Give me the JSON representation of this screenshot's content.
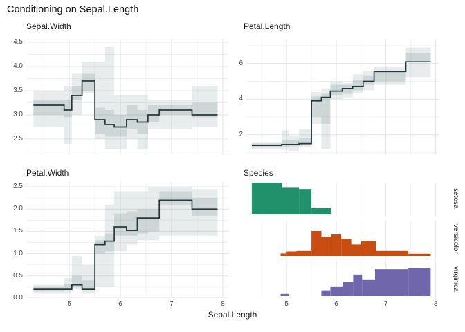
{
  "title": "Conditioning on Sepal.Length",
  "xlabel": "Sepal.Length",
  "colors": {
    "line": "#263a3e",
    "band": "#8d9e9e",
    "grid_major": "#e4e7e7",
    "grid_minor": "#f2f4f4",
    "tick_text": "#4d4d4d",
    "text": "#1a1a1a",
    "setosa": "#21916b",
    "versicolor": "#c84d10",
    "virginica": "#6f66ab"
  },
  "chart_data": [
    {
      "type": "line",
      "title": "Sepal.Width",
      "xlim": [
        4.16,
        8.11
      ],
      "ylim": [
        2.186,
        4.557
      ],
      "xticks": [
        5,
        6,
        7,
        8
      ],
      "xminor": [
        4.5,
        5.5,
        6.5,
        7.5
      ],
      "yticks": [
        2.5,
        3.0,
        3.5,
        4.0,
        4.5
      ],
      "ytick_labels": [
        "2.5",
        "3.0",
        "3.5",
        "4.0",
        "4.5"
      ],
      "yminor": [
        2.25,
        2.75,
        3.25,
        3.75,
        4.25
      ],
      "breaks": [
        4.3,
        4.9,
        5.05,
        5.25,
        5.5,
        5.7,
        5.88,
        6.12,
        6.33,
        6.54,
        6.76,
        7.4,
        7.9
      ],
      "values": [
        3.2,
        3.1,
        3.4,
        3.7,
        2.9,
        2.8,
        2.75,
        2.9,
        2.85,
        3.0,
        3.1,
        3.0
      ],
      "band_outer": [
        [
          2.75,
          3.5
        ],
        [
          2.4,
          3.6
        ],
        [
          3.0,
          3.85
        ],
        [
          3.45,
          4.1
        ],
        [
          2.5,
          4.1
        ],
        [
          2.3,
          4.4
        ],
        [
          2.3,
          3.4
        ],
        [
          2.5,
          3.4
        ],
        [
          2.3,
          3.4
        ],
        [
          2.7,
          3.3
        ],
        [
          2.7,
          3.3
        ],
        [
          2.75,
          3.6
        ]
      ],
      "band_inner": [
        [
          3.0,
          3.3
        ],
        [
          2.95,
          3.3
        ],
        [
          3.3,
          3.6
        ],
        [
          3.5,
          3.85
        ],
        [
          2.6,
          3.15
        ],
        [
          2.55,
          3.1
        ],
        [
          2.55,
          3.0
        ],
        [
          2.7,
          3.2
        ],
        [
          2.6,
          3.1
        ],
        [
          2.85,
          3.2
        ],
        [
          3.0,
          3.2
        ],
        [
          2.95,
          3.25
        ]
      ]
    },
    {
      "type": "line",
      "title": "Petal.Length",
      "xlim": [
        4.19,
        8.075
      ],
      "ylim": [
        0.9,
        7.35
      ],
      "xticks": [
        5,
        6,
        7,
        8
      ],
      "xminor": [
        4.5,
        5.5,
        6.5,
        7.5
      ],
      "yticks": [
        2,
        4,
        6
      ],
      "ytick_labels": [
        "2",
        "4",
        "6"
      ],
      "yminor": [
        1,
        3,
        5,
        7
      ],
      "breaks": [
        4.3,
        4.9,
        5.05,
        5.25,
        5.5,
        5.7,
        5.88,
        6.12,
        6.33,
        6.54,
        6.76,
        7.4,
        7.9
      ],
      "values": [
        1.4,
        1.45,
        1.45,
        1.5,
        3.9,
        4.1,
        4.45,
        4.6,
        4.7,
        5.0,
        5.55,
        6.1
      ],
      "band_outer": [
        [
          1.2,
          1.55
        ],
        [
          1.15,
          2.25
        ],
        [
          1.1,
          1.9
        ],
        [
          1.3,
          2.3
        ],
        [
          2.6,
          4.4
        ],
        [
          1.2,
          4.6
        ],
        [
          4.0,
          5.0
        ],
        [
          4.1,
          4.9
        ],
        [
          4.35,
          5.4
        ],
        [
          4.5,
          5.6
        ],
        [
          4.8,
          5.8
        ],
        [
          5.2,
          6.9
        ]
      ],
      "band_inner": [
        [
          1.3,
          1.5
        ],
        [
          1.3,
          1.7
        ],
        [
          1.35,
          1.7
        ],
        [
          1.45,
          1.8
        ],
        [
          3.0,
          4.15
        ],
        [
          2.6,
          4.3
        ],
        [
          4.2,
          4.8
        ],
        [
          4.3,
          4.8
        ],
        [
          4.5,
          5.1
        ],
        [
          4.8,
          5.3
        ],
        [
          5.0,
          5.6
        ],
        [
          6.15,
          6.6
        ]
      ]
    },
    {
      "type": "line",
      "title": "Petal.Width",
      "xlim": [
        4.16,
        8.11
      ],
      "ylim": [
        0,
        2.609
      ],
      "xticks": [
        5,
        6,
        7,
        8
      ],
      "xminor": [
        4.5,
        5.5,
        6.5,
        7.5
      ],
      "yticks": [
        0,
        0.5,
        1.0,
        1.5,
        2.0,
        2.5
      ],
      "ytick_labels": [
        "0.0",
        "0.5",
        "1.0",
        "1.5",
        "2.0",
        "2.5"
      ],
      "yminor": [
        0.25,
        0.75,
        1.25,
        1.75,
        2.25
      ],
      "breaks": [
        4.3,
        4.9,
        5.05,
        5.25,
        5.5,
        5.7,
        5.88,
        6.12,
        6.33,
        6.54,
        6.76,
        7.4,
        7.9
      ],
      "values": [
        0.2,
        0.2,
        0.3,
        0.2,
        1.2,
        1.28,
        1.6,
        1.52,
        1.8,
        1.8,
        2.2,
        2.0
      ],
      "band_outer": [
        [
          0.1,
          0.3
        ],
        [
          0.1,
          0.45
        ],
        [
          0.2,
          0.95
        ],
        [
          0.1,
          0.75
        ],
        [
          0.25,
          1.4
        ],
        [
          0.25,
          2.1
        ],
        [
          1.05,
          2.4
        ],
        [
          1.2,
          2.4
        ],
        [
          1.3,
          2.4
        ],
        [
          1.3,
          2.5
        ],
        [
          1.4,
          2.5
        ],
        [
          1.4,
          2.45
        ]
      ],
      "band_inner": [
        [
          0.15,
          0.25
        ],
        [
          0.18,
          0.32
        ],
        [
          0.25,
          0.5
        ],
        [
          0.18,
          0.4
        ],
        [
          1.0,
          1.3
        ],
        [
          1.05,
          1.45
        ],
        [
          1.4,
          1.9
        ],
        [
          1.4,
          1.95
        ],
        [
          1.45,
          2.0
        ],
        [
          1.5,
          2.0
        ],
        [
          2.1,
          2.4
        ],
        [
          1.85,
          2.25
        ]
      ]
    },
    {
      "type": "bar",
      "title": "Species",
      "xlim": [
        4.19,
        8.075
      ],
      "xticks": [
        5,
        6,
        7,
        8
      ],
      "xminor": [
        4.5,
        5.5,
        6.5,
        7.5
      ],
      "strips": [
        {
          "label": "setosa",
          "color": "#21916b",
          "peak": 1.0,
          "bars": [
            [
              4.3,
              4.9,
              1.0
            ],
            [
              4.9,
              5.25,
              0.84
            ],
            [
              5.25,
              5.5,
              0.8
            ],
            [
              5.5,
              5.9,
              0.2
            ]
          ]
        },
        {
          "label": "versicolor",
          "color": "#c84d10",
          "peak": 0.72,
          "bars": [
            [
              4.88,
              5.0,
              0.1
            ],
            [
              5.0,
              5.2,
              0.18
            ],
            [
              5.2,
              5.5,
              0.2
            ],
            [
              5.5,
              5.7,
              1.0
            ],
            [
              5.7,
              5.9,
              0.76
            ],
            [
              5.9,
              6.1,
              0.86
            ],
            [
              6.1,
              6.3,
              0.69
            ],
            [
              6.3,
              6.5,
              0.46
            ],
            [
              6.5,
              6.8,
              0.6
            ],
            [
              6.8,
              7.45,
              0.2
            ],
            [
              7.45,
              7.9,
              0.09
            ]
          ]
        },
        {
          "label": "virginica",
          "color": "#6f66ab",
          "peak": 0.8,
          "bars": [
            [
              4.88,
              5.05,
              0.08
            ],
            [
              5.7,
              5.88,
              0.21
            ],
            [
              5.88,
              6.13,
              0.33
            ],
            [
              6.13,
              6.34,
              0.5
            ],
            [
              6.34,
              6.52,
              0.78
            ],
            [
              6.52,
              6.78,
              0.58
            ],
            [
              6.78,
              7.45,
              0.97
            ],
            [
              7.45,
              7.9,
              1.0
            ]
          ]
        }
      ]
    }
  ]
}
